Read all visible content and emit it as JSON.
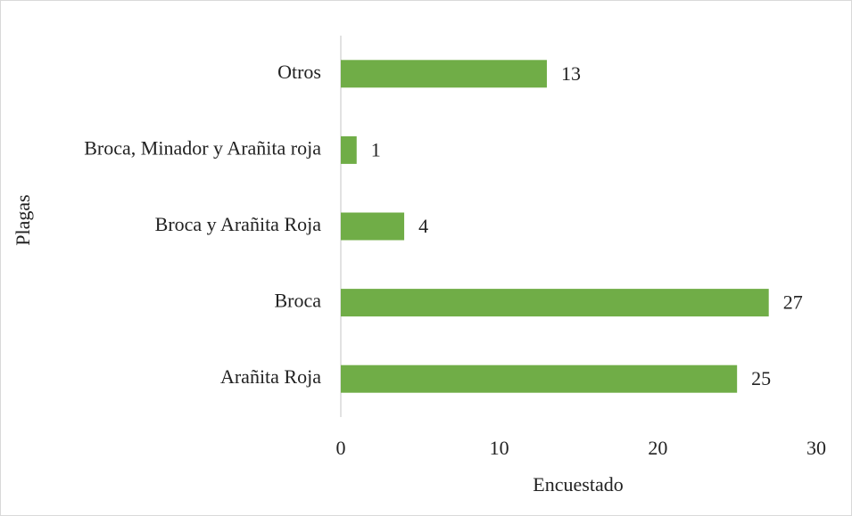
{
  "chart_data": {
    "type": "bar",
    "orientation": "horizontal",
    "x_label": "Encuestado",
    "y_label": "Plagas",
    "categories": [
      "Arañita Roja",
      "Broca",
      "Broca y Arañita Roja",
      "Broca, Minador y Arañita roja",
      "Otros"
    ],
    "values": [
      25,
      27,
      4,
      1,
      13
    ],
    "color": "#70ad47",
    "xlim": [
      0,
      30
    ],
    "xticks": [
      0,
      10,
      20,
      30
    ],
    "grid": false
  }
}
